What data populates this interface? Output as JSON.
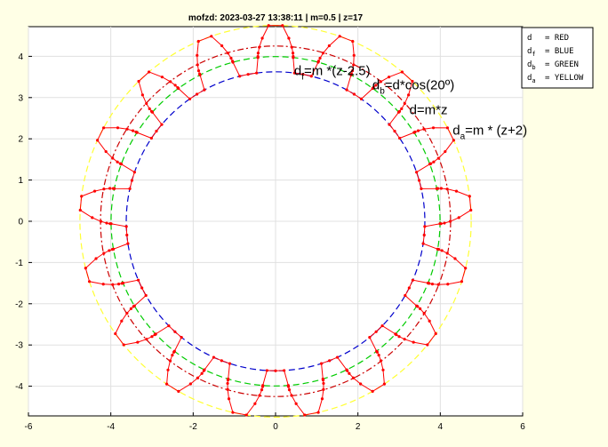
{
  "chart_data": {
    "type": "line",
    "title": "mofzd: 2023-03-27 13:38:11 | m=0.5 | z=17",
    "xlim": [
      -6,
      6
    ],
    "ylim": [
      -4.72,
      4.72
    ],
    "xticks": [
      -6,
      -4,
      -2,
      0,
      2,
      4,
      6
    ],
    "yticks": [
      -4,
      -3,
      -2,
      -1,
      0,
      1,
      2,
      3,
      4
    ],
    "grid": true,
    "legend_position": "top-right",
    "module": 0.5,
    "teeth": 17,
    "pressure_angle_deg": 20,
    "circles": [
      {
        "key": "dd",
        "d": 7.25,
        "color": "#0000cc",
        "style": "dash"
      },
      {
        "key": "db",
        "d": 7.988,
        "color": "#00cc00",
        "style": "dash"
      },
      {
        "key": "d",
        "d": 8.5,
        "color": "#cc0000",
        "style": "dashdot"
      },
      {
        "key": "da",
        "d": 9.5,
        "color": "#ffff33",
        "style": "dash"
      }
    ],
    "legend": [
      {
        "label": "d",
        "sub": "",
        "text": "= RED"
      },
      {
        "label": "d",
        "sub": "f",
        "text": "= BLUE"
      },
      {
        "label": "d",
        "sub": "b",
        "text": "= GREEN"
      },
      {
        "label": "d",
        "sub": "a",
        "text": "= YELLOW"
      }
    ],
    "annotations": [
      {
        "main": "d",
        "sub": "f",
        "rest": "=m *(z-2.5)",
        "x": 0.45,
        "y": 3.55
      },
      {
        "main": "d",
        "sub": "b",
        "rest": "=d*cos(20º)",
        "x": 2.35,
        "y": 3.2
      },
      {
        "main": "d",
        "sub": "",
        "rest": "=m*z",
        "x": 3.25,
        "y": 2.6
      },
      {
        "main": "d",
        "sub": "a",
        "rest": "=m * (z+2)",
        "x": 4.3,
        "y": 2.1
      }
    ],
    "profile_color": "#ff0000"
  }
}
